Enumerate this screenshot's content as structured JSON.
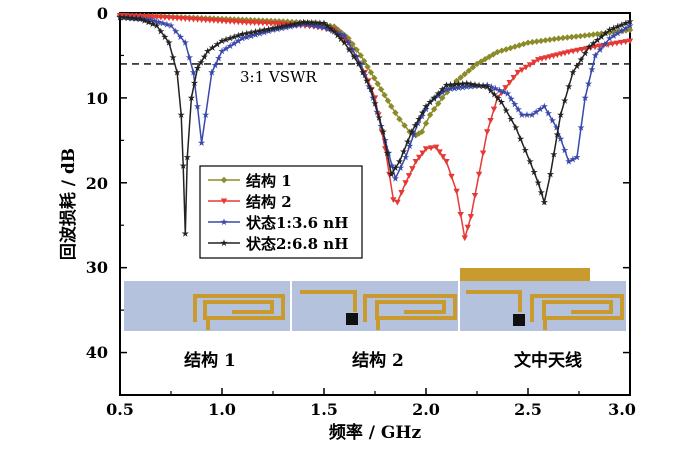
{
  "chart_data": {
    "type": "line",
    "xlabel": "频率 / GHz",
    "ylabel": "回波损耗 / dB",
    "xlim": [
      0.5,
      3.0
    ],
    "ylim": [
      0,
      45
    ],
    "y_inverted": true,
    "x_ticks": [
      "0.5",
      "1.0",
      "1.5",
      "2.0",
      "2.5",
      "3.0"
    ],
    "y_ticks": [
      "0",
      "10",
      "20",
      "30",
      "40"
    ],
    "grid": false,
    "legend_position": "left-middle",
    "reference_line": {
      "y": 6,
      "label": "3:1 VSWR",
      "style": "dashed"
    },
    "series": [
      {
        "name": "结构 1",
        "color": "#8b8b2a",
        "marker": "diamond",
        "points": [
          [
            0.5,
            0.3
          ],
          [
            0.7,
            0.4
          ],
          [
            0.9,
            0.6
          ],
          [
            1.1,
            0.8
          ],
          [
            1.3,
            1.0
          ],
          [
            1.45,
            1.2
          ],
          [
            1.55,
            1.6
          ],
          [
            1.62,
            3.0
          ],
          [
            1.68,
            5.0
          ],
          [
            1.73,
            7.0
          ],
          [
            1.78,
            9.0
          ],
          [
            1.83,
            11.0
          ],
          [
            1.87,
            12.5
          ],
          [
            1.92,
            14.0
          ],
          [
            1.95,
            14.4
          ],
          [
            1.98,
            14.0
          ],
          [
            2.02,
            12.0
          ],
          [
            2.08,
            10.0
          ],
          [
            2.15,
            8.0
          ],
          [
            2.25,
            6.0
          ],
          [
            2.35,
            4.6
          ],
          [
            2.5,
            3.5
          ],
          [
            2.65,
            3.0
          ],
          [
            2.8,
            2.6
          ],
          [
            2.9,
            2.3
          ],
          [
            3.0,
            2.0
          ]
        ]
      },
      {
        "name": "结构 2",
        "color": "#e53935",
        "marker": "triangle-down",
        "points": [
          [
            0.5,
            0.3
          ],
          [
            0.7,
            0.5
          ],
          [
            0.9,
            0.8
          ],
          [
            1.1,
            1.1
          ],
          [
            1.3,
            1.3
          ],
          [
            1.45,
            1.6
          ],
          [
            1.55,
            2.0
          ],
          [
            1.62,
            3.5
          ],
          [
            1.7,
            7.0
          ],
          [
            1.75,
            10.0
          ],
          [
            1.8,
            16.0
          ],
          [
            1.84,
            22.0
          ],
          [
            1.86,
            22.3
          ],
          [
            1.9,
            20.0
          ],
          [
            1.95,
            17.5
          ],
          [
            2.0,
            16.0
          ],
          [
            2.05,
            15.8
          ],
          [
            2.1,
            17.5
          ],
          [
            2.15,
            21.0
          ],
          [
            2.19,
            26.5
          ],
          [
            2.22,
            24.0
          ],
          [
            2.26,
            19.0
          ],
          [
            2.3,
            14.0
          ],
          [
            2.35,
            10.0
          ],
          [
            2.45,
            7.0
          ],
          [
            2.55,
            5.5
          ],
          [
            2.7,
            4.6
          ],
          [
            2.85,
            3.9
          ],
          [
            3.0,
            3.3
          ]
        ]
      },
      {
        "name": "状态1:3.6 nH",
        "color": "#3949ab",
        "marker": "star",
        "points": [
          [
            0.5,
            0.5
          ],
          [
            0.65,
            0.8
          ],
          [
            0.75,
            1.5
          ],
          [
            0.82,
            3.5
          ],
          [
            0.86,
            7.0
          ],
          [
            0.88,
            11.0
          ],
          [
            0.9,
            15.3
          ],
          [
            0.92,
            12.0
          ],
          [
            0.95,
            7.0
          ],
          [
            1.0,
            4.5
          ],
          [
            1.1,
            3.0
          ],
          [
            1.25,
            2.0
          ],
          [
            1.4,
            1.3
          ],
          [
            1.5,
            1.7
          ],
          [
            1.6,
            2.7
          ],
          [
            1.68,
            6.0
          ],
          [
            1.74,
            10.0
          ],
          [
            1.8,
            15.0
          ],
          [
            1.85,
            19.5
          ],
          [
            1.9,
            17.0
          ],
          [
            1.96,
            13.0
          ],
          [
            2.02,
            10.5
          ],
          [
            2.1,
            9.0
          ],
          [
            2.2,
            8.7
          ],
          [
            2.3,
            8.5
          ],
          [
            2.4,
            9.5
          ],
          [
            2.47,
            12.0
          ],
          [
            2.52,
            12.0
          ],
          [
            2.58,
            11.0
          ],
          [
            2.64,
            13.5
          ],
          [
            2.7,
            17.5
          ],
          [
            2.74,
            17.0
          ],
          [
            2.78,
            10.0
          ],
          [
            2.83,
            5.0
          ],
          [
            2.9,
            3.0
          ],
          [
            3.0,
            1.5
          ]
        ]
      },
      {
        "name": "状态2:6.8 nH",
        "color": "#222222",
        "marker": "star",
        "points": [
          [
            0.5,
            0.5
          ],
          [
            0.6,
            0.7
          ],
          [
            0.68,
            1.5
          ],
          [
            0.74,
            3.5
          ],
          [
            0.78,
            7.0
          ],
          [
            0.8,
            12.0
          ],
          [
            0.81,
            18.0
          ],
          [
            0.82,
            26.0
          ],
          [
            0.83,
            17.0
          ],
          [
            0.85,
            10.0
          ],
          [
            0.88,
            6.5
          ],
          [
            0.93,
            4.5
          ],
          [
            1.0,
            3.3
          ],
          [
            1.1,
            2.5
          ],
          [
            1.25,
            1.8
          ],
          [
            1.4,
            1.1
          ],
          [
            1.5,
            1.2
          ],
          [
            1.55,
            2.2
          ],
          [
            1.6,
            3.5
          ],
          [
            1.67,
            6.0
          ],
          [
            1.73,
            9.0
          ],
          [
            1.79,
            14.0
          ],
          [
            1.83,
            19.0
          ],
          [
            1.87,
            17.5
          ],
          [
            1.93,
            14.0
          ],
          [
            2.0,
            11.0
          ],
          [
            2.1,
            8.5
          ],
          [
            2.2,
            8.3
          ],
          [
            2.3,
            8.7
          ],
          [
            2.37,
            10.5
          ],
          [
            2.44,
            13.5
          ],
          [
            2.51,
            17.5
          ],
          [
            2.55,
            20.0
          ],
          [
            2.58,
            22.3
          ],
          [
            2.61,
            19.0
          ],
          [
            2.66,
            12.0
          ],
          [
            2.72,
            7.0
          ],
          [
            2.8,
            4.0
          ],
          [
            2.9,
            2.0
          ],
          [
            3.0,
            1.0
          ]
        ]
      }
    ],
    "inset_labels": [
      "结构 1",
      "结构 2",
      "文中天线"
    ],
    "reference_label": "3:1 VSWR"
  },
  "colors": {
    "inset_background": "#b4c2de",
    "antenna_trace": "#c99a2e",
    "feed_block": "#111111"
  }
}
